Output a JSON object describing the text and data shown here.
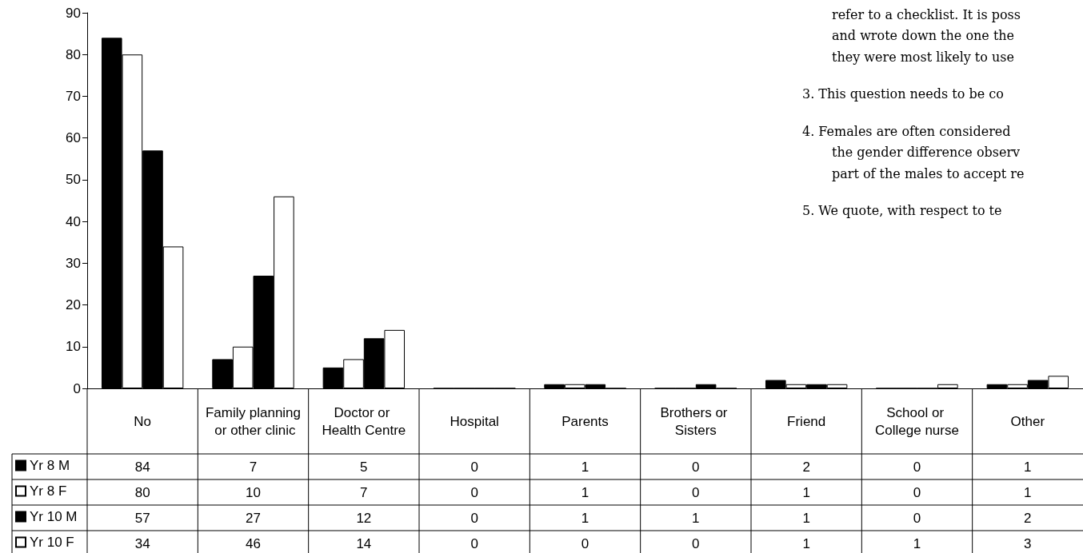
{
  "chart_data": {
    "type": "bar",
    "categories": [
      "No",
      "Family planning or other clinic",
      "Doctor or Health Centre",
      "Hospital",
      "Parents",
      "Brothers or Sisters",
      "Friend",
      "School or College nurse",
      "Other"
    ],
    "series": [
      {
        "name": "Yr 8 M",
        "color": "#000000",
        "values": [
          84,
          7,
          5,
          0,
          1,
          0,
          2,
          0,
          1
        ]
      },
      {
        "name": "Yr 8 F",
        "color": "#ffffff",
        "values": [
          80,
          10,
          7,
          0,
          1,
          0,
          1,
          0,
          1
        ]
      },
      {
        "name": "Yr 10 M",
        "color": "#000000",
        "values": [
          57,
          27,
          12,
          0,
          1,
          1,
          1,
          0,
          2
        ]
      },
      {
        "name": "Yr 10 F",
        "color": "#ffffff",
        "values": [
          34,
          46,
          14,
          0,
          0,
          0,
          1,
          1,
          3
        ]
      }
    ],
    "ylim": [
      0,
      90
    ],
    "yticks": [
      0,
      10,
      20,
      30,
      40,
      50,
      60,
      70,
      80,
      90
    ],
    "data_labels": true,
    "legend": "bottom left",
    "annotations": [
      "refer to a checklist. It is poss",
      "and wrote down the one the",
      "they were most likely to use",
      "3. This question needs to be co",
      "4. Females are often considered",
      "the gender difference observ",
      "part of the males to accept re",
      "5. We quote, with respect to te"
    ]
  }
}
